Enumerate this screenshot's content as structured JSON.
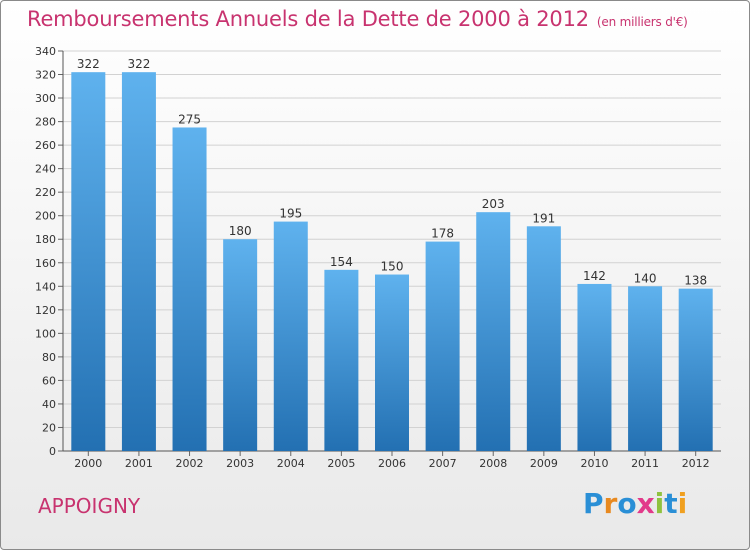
{
  "title": "Remboursements Annuels de la Dette de 2000 à 2012",
  "unit_note": "(en milliers d'€)",
  "city": "APPOIGNY",
  "brand": "Proxiti",
  "colors": {
    "title": "#c8336f",
    "bar_light": "#5fb2ee",
    "bar_dark": "#2370b2",
    "grid": "#d2d2d2"
  },
  "chart_data": {
    "type": "bar",
    "categories": [
      "2000",
      "2001",
      "2002",
      "2003",
      "2004",
      "2005",
      "2006",
      "2007",
      "2008",
      "2009",
      "2010",
      "2011",
      "2012"
    ],
    "values": [
      322,
      322,
      275,
      180,
      195,
      154,
      150,
      178,
      203,
      191,
      142,
      140,
      138
    ],
    "ylim": [
      0,
      340
    ],
    "yticks": [
      0,
      20,
      40,
      60,
      80,
      100,
      120,
      140,
      160,
      180,
      200,
      220,
      240,
      260,
      280,
      300,
      320,
      340
    ],
    "grid": true
  }
}
